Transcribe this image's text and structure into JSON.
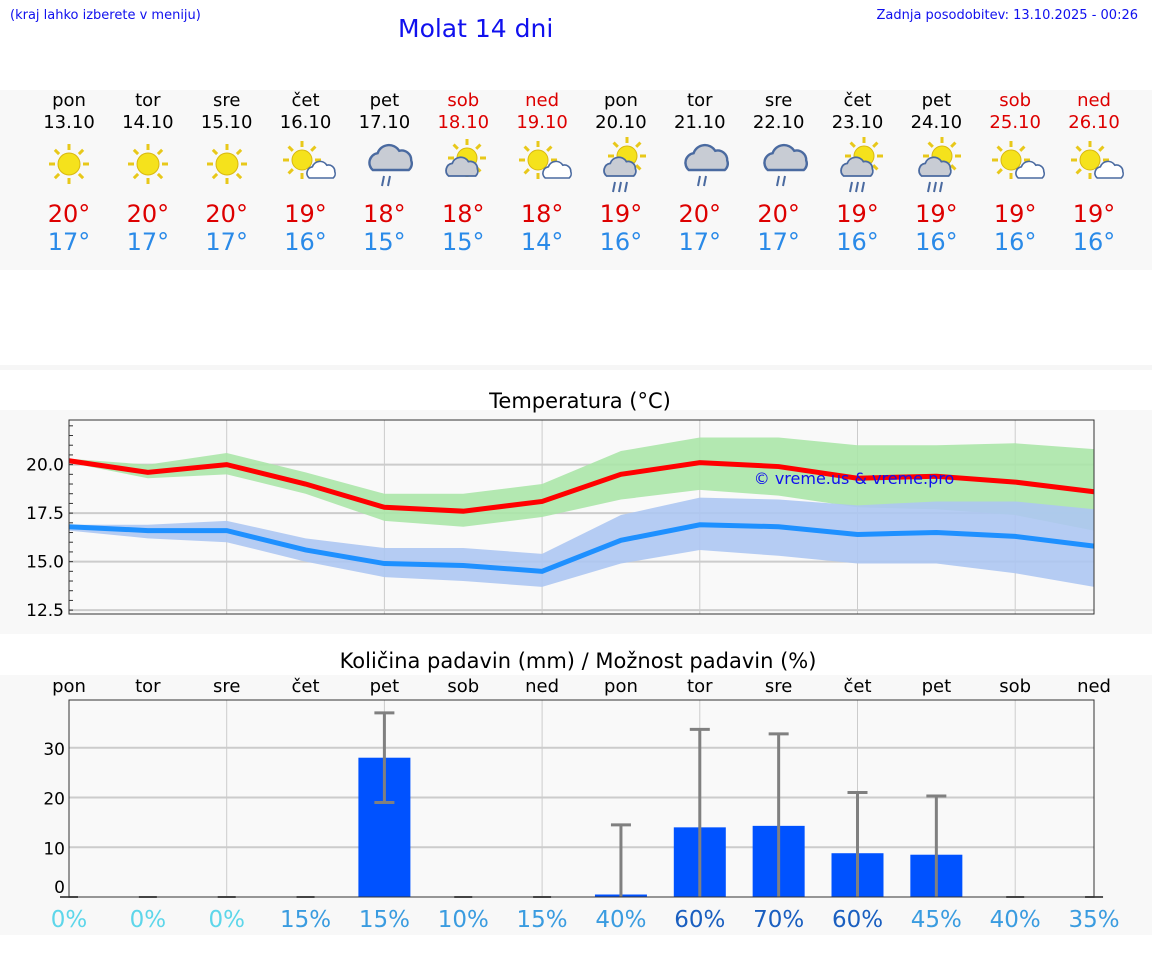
{
  "header": {
    "hint": "(kraj lahko izberete v meniju)",
    "title": "Molat 14 dni",
    "updated": "Zadnja posodobitev: 13.10.2025 - 00:26"
  },
  "days": [
    {
      "name": "pon",
      "date": "13.10",
      "icon": "sun",
      "max": "20°",
      "min": "17°",
      "weekend": false
    },
    {
      "name": "tor",
      "date": "14.10",
      "icon": "sun",
      "max": "20°",
      "min": "17°",
      "weekend": false
    },
    {
      "name": "sre",
      "date": "15.10",
      "icon": "sun",
      "max": "20°",
      "min": "17°",
      "weekend": false
    },
    {
      "name": "čet",
      "date": "16.10",
      "icon": "sun-cloud",
      "max": "19°",
      "min": "16°",
      "weekend": false
    },
    {
      "name": "pet",
      "date": "17.10",
      "icon": "cloud-rain",
      "max": "18°",
      "min": "15°",
      "weekend": false
    },
    {
      "name": "sob",
      "date": "18.10",
      "icon": "sun-cloud-big",
      "max": "18°",
      "min": "15°",
      "weekend": true
    },
    {
      "name": "ned",
      "date": "19.10",
      "icon": "sun-cloud",
      "max": "18°",
      "min": "14°",
      "weekend": true
    },
    {
      "name": "pon",
      "date": "20.10",
      "icon": "sun-cloud-rain",
      "max": "19°",
      "min": "16°",
      "weekend": false
    },
    {
      "name": "tor",
      "date": "21.10",
      "icon": "cloud-rain",
      "max": "20°",
      "min": "17°",
      "weekend": false
    },
    {
      "name": "sre",
      "date": "22.10",
      "icon": "cloud-rain",
      "max": "20°",
      "min": "17°",
      "weekend": false
    },
    {
      "name": "čet",
      "date": "23.10",
      "icon": "sun-cloud-rain",
      "max": "19°",
      "min": "16°",
      "weekend": false
    },
    {
      "name": "pet",
      "date": "24.10",
      "icon": "sun-cloud-rain",
      "max": "19°",
      "min": "16°",
      "weekend": false
    },
    {
      "name": "sob",
      "date": "25.10",
      "icon": "sun-cloud",
      "max": "19°",
      "min": "16°",
      "weekend": true
    },
    {
      "name": "ned",
      "date": "26.10",
      "icon": "sun-cloud",
      "max": "19°",
      "min": "16°",
      "weekend": true
    }
  ],
  "colors": {
    "max": "#ff0000",
    "min": "#1e90ff",
    "max_band": "#abe6a9",
    "min_band": "#adc6f2",
    "bar": "#0052ff",
    "err": "#808080"
  },
  "chart_data": [
    {
      "type": "line",
      "title": "Temperatura (°C)",
      "ylim": [
        12.3,
        22.3
      ],
      "yticks": [
        "12.5",
        "15.0",
        "17.5",
        "20.0"
      ],
      "ytick_values": [
        12.5,
        15,
        17.5,
        20
      ],
      "watermark": "© vreme.us & vreme.pro",
      "series": [
        {
          "name": "max",
          "values": [
            20.2,
            19.6,
            20.0,
            19.0,
            17.8,
            17.6,
            18.1,
            19.5,
            20.1,
            19.9,
            19.3,
            19.4,
            19.1,
            18.6
          ],
          "band_hi": [
            20.3,
            20.0,
            20.6,
            19.6,
            18.5,
            18.5,
            19.0,
            20.7,
            21.4,
            21.4,
            21.0,
            21.0,
            21.1,
            20.8
          ],
          "band_lo": [
            20.1,
            19.3,
            19.5,
            18.5,
            17.1,
            16.8,
            17.3,
            18.2,
            18.7,
            18.4,
            17.8,
            17.7,
            17.4,
            16.6
          ]
        },
        {
          "name": "min",
          "values": [
            16.8,
            16.6,
            16.6,
            15.6,
            14.9,
            14.8,
            14.5,
            16.1,
            16.9,
            16.8,
            16.4,
            16.5,
            16.3,
            15.8
          ],
          "band_hi": [
            16.9,
            16.9,
            17.1,
            16.2,
            15.7,
            15.7,
            15.4,
            17.4,
            18.3,
            18.2,
            17.9,
            18.1,
            18.1,
            17.7
          ],
          "band_lo": [
            16.6,
            16.2,
            16.0,
            15.0,
            14.2,
            14.0,
            13.7,
            14.9,
            15.6,
            15.3,
            14.9,
            14.9,
            14.4,
            13.7
          ]
        }
      ]
    },
    {
      "type": "bar",
      "title": "Količina padavin (mm) / Možnost padavin (%)",
      "ylim": [
        0,
        39.6
      ],
      "yticks": [
        "0",
        "10",
        "20",
        "30"
      ],
      "ytick_values": [
        0,
        10,
        20,
        30
      ],
      "categories": [
        "pon",
        "tor",
        "sre",
        "čet",
        "pet",
        "sob",
        "ned",
        "pon",
        "tor",
        "sre",
        "čet",
        "pet",
        "sob",
        "ned"
      ],
      "values": [
        0,
        0,
        0,
        0,
        28,
        0,
        0,
        0.5,
        14,
        14.3,
        8.8,
        8.5,
        0,
        0
      ],
      "err_lo": [
        0,
        0,
        0,
        0,
        19,
        0,
        0,
        0,
        0,
        0,
        0,
        0,
        0,
        0
      ],
      "err_hi": [
        0,
        0,
        0,
        0,
        37,
        0,
        0,
        14.5,
        33.7,
        32.8,
        21,
        20.3,
        0,
        0
      ],
      "probability": [
        "0%",
        "0%",
        "0%",
        "15%",
        "15%",
        "10%",
        "15%",
        "40%",
        "60%",
        "70%",
        "60%",
        "45%",
        "40%",
        "35%"
      ],
      "probability_values": [
        0,
        0,
        0,
        15,
        15,
        10,
        15,
        40,
        60,
        70,
        60,
        45,
        40,
        35
      ]
    }
  ]
}
